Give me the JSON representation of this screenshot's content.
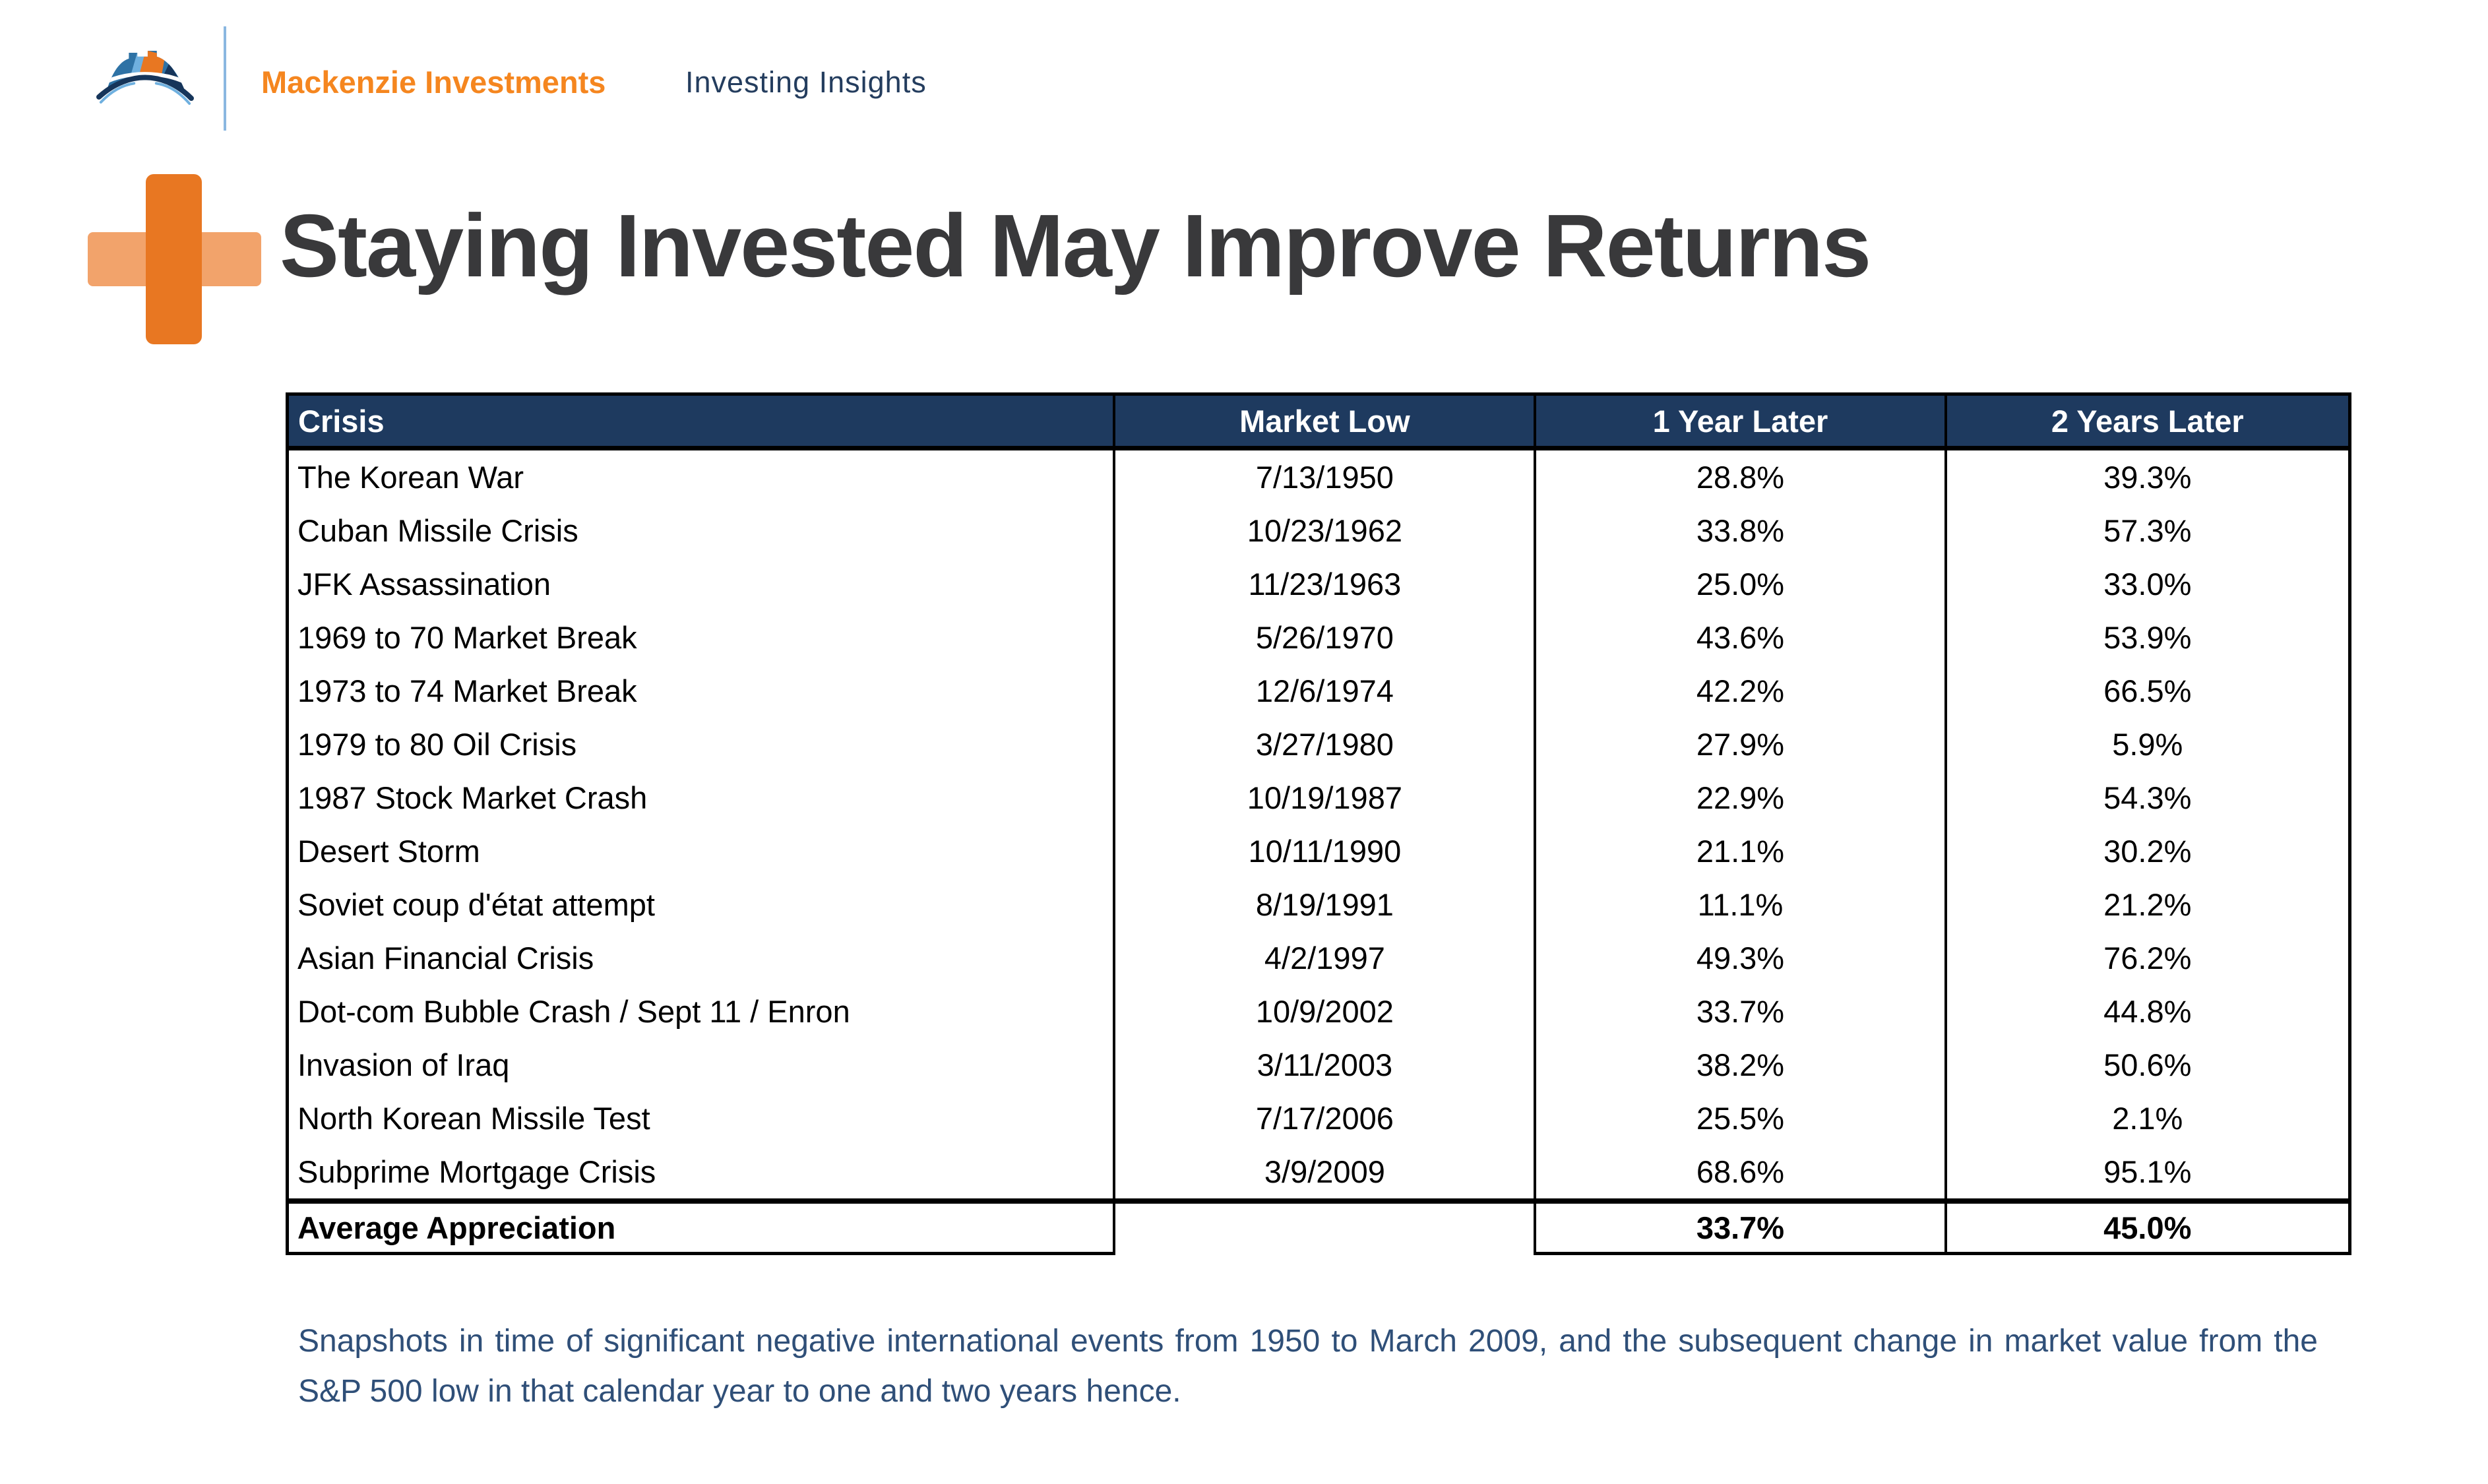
{
  "brand": {
    "name": "Mackenzie Investments",
    "tagline": "Investing Insights",
    "logo": "mackenzie-bridge-logo"
  },
  "title": "Staying Invested May Improve Returns",
  "table": {
    "headers": [
      "Crisis",
      "Market Low",
      "1 Year Later",
      "2 Years Later"
    ],
    "rows": [
      {
        "crisis": "The Korean War",
        "market_low": "7/13/1950",
        "one_year": "28.8%",
        "two_years": "39.3%"
      },
      {
        "crisis": "Cuban Missile Crisis",
        "market_low": "10/23/1962",
        "one_year": "33.8%",
        "two_years": "57.3%"
      },
      {
        "crisis": "JFK Assassination",
        "market_low": "11/23/1963",
        "one_year": "25.0%",
        "two_years": "33.0%"
      },
      {
        "crisis": "1969 to 70 Market Break",
        "market_low": "5/26/1970",
        "one_year": "43.6%",
        "two_years": "53.9%"
      },
      {
        "crisis": "1973 to 74 Market Break",
        "market_low": "12/6/1974",
        "one_year": "42.2%",
        "two_years": "66.5%"
      },
      {
        "crisis": "1979 to 80 Oil Crisis",
        "market_low": "3/27/1980",
        "one_year": "27.9%",
        "two_years": "5.9%"
      },
      {
        "crisis": "1987 Stock Market Crash",
        "market_low": "10/19/1987",
        "one_year": "22.9%",
        "two_years": "54.3%"
      },
      {
        "crisis": "Desert Storm",
        "market_low": "10/11/1990",
        "one_year": "21.1%",
        "two_years": "30.2%"
      },
      {
        "crisis": "Soviet coup d'état attempt",
        "market_low": "8/19/1991",
        "one_year": "11.1%",
        "two_years": "21.2%"
      },
      {
        "crisis": "Asian Financial Crisis",
        "market_low": "4/2/1997",
        "one_year": "49.3%",
        "two_years": "76.2%"
      },
      {
        "crisis": "Dot-com Bubble Crash / Sept 11 / Enron",
        "market_low": "10/9/2002",
        "one_year": "33.7%",
        "two_years": "44.8%"
      },
      {
        "crisis": "Invasion of Iraq",
        "market_low": "3/11/2003",
        "one_year": "38.2%",
        "two_years": "50.6%"
      },
      {
        "crisis": "North Korean Missile Test",
        "market_low": "7/17/2006",
        "one_year": "25.5%",
        "two_years": "2.1%"
      },
      {
        "crisis": "Subprime Mortgage Crisis",
        "market_low": "3/9/2009",
        "one_year": "68.6%",
        "two_years": "95.1%"
      }
    ],
    "summary": {
      "crisis": "Average Appreciation",
      "market_low": "",
      "one_year": "33.7%",
      "two_years": "45.0%"
    }
  },
  "footnote": "Snapshots in time of significant negative international events from 1950 to March 2009, and the subsequent change in market value from the S&P 500 low in that calendar year to one and two years hence.",
  "colors": {
    "table_header_navy": "#1e3a5f",
    "brand_orange": "#f5861f",
    "accent_orange": "#e87722",
    "accent_orange_light": "#f2a36b",
    "tagline_navy": "#243d5e",
    "footnote_blue": "#2f4f78",
    "title_gray": "#39393b",
    "divider_light_blue": "#8ab7e0"
  }
}
